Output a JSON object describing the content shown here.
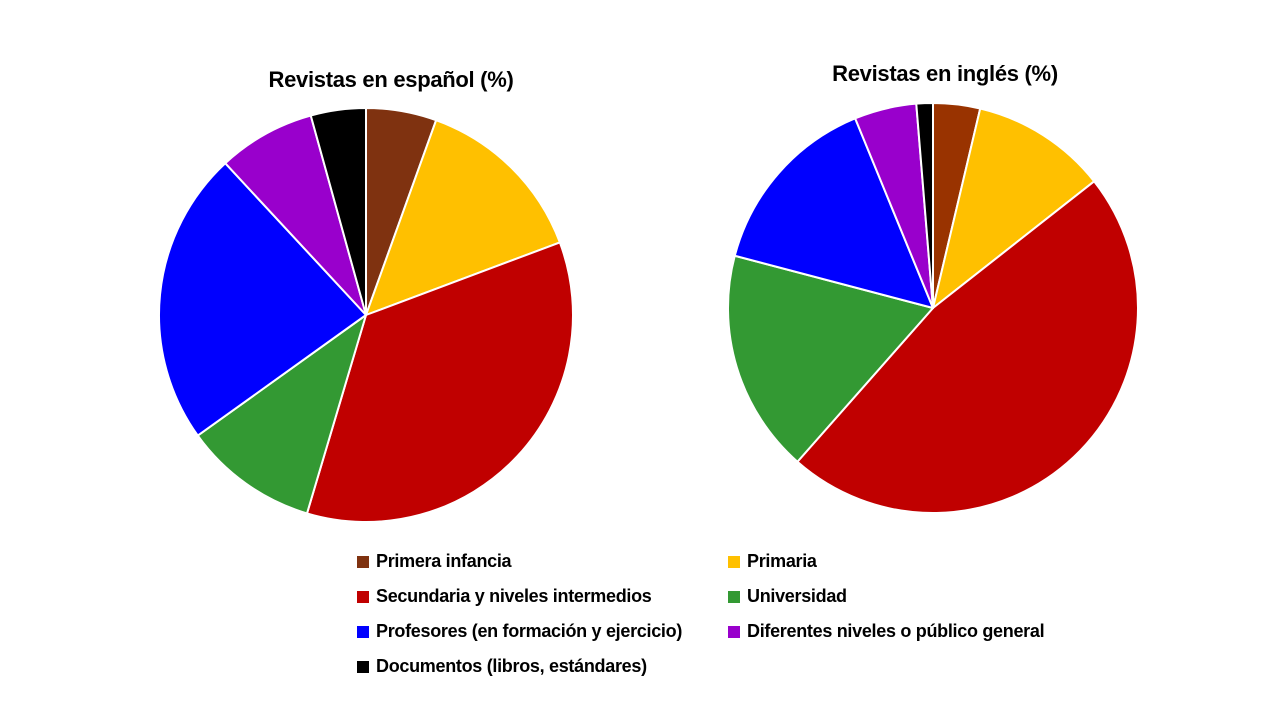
{
  "chart_data": [
    {
      "type": "pie",
      "title": "Revistas en español (%)",
      "categories": [
        "Primera infancia",
        "Primaria",
        "Secundaria y niveles intermedios",
        "Universidad",
        "Profesores (en formación y ejercicio)",
        "Diferentes niveles o público general",
        "Documentos (libros, estándares)"
      ],
      "values": [
        5.5,
        13.8,
        35.3,
        10.5,
        23.0,
        7.6,
        4.3
      ],
      "start_angle": 0,
      "direction": "clockwise"
    },
    {
      "type": "pie",
      "title": "Revistas en inglés (%)",
      "categories": [
        "Primera infancia",
        "Primaria",
        "Secundaria y niveles intermedios",
        "Universidad",
        "Profesores (en formación y ejercicio)",
        "Diferentes niveles o público general",
        "Documentos (libros, estándares)"
      ],
      "values": [
        3.7,
        10.7,
        47.1,
        17.6,
        14.7,
        4.9,
        1.3
      ],
      "start_angle": 0,
      "direction": "clockwise"
    }
  ],
  "charts": {
    "left": {
      "title": "Revistas en español (%)"
    },
    "right": {
      "title": "Revistas en inglés (%)"
    }
  },
  "legend": {
    "position": "bottom",
    "items": [
      {
        "label": "Primera infancia",
        "color": "#7F3210"
      },
      {
        "label": "Primaria",
        "color": "#FFC000"
      },
      {
        "label": "Secundaria y niveles intermedios",
        "color": "#C00000"
      },
      {
        "label": "Universidad",
        "color": "#339933"
      },
      {
        "label": "Profesores (en formación y ejercicio)",
        "color": "#0000FF"
      },
      {
        "label": "Diferentes niveles o público general",
        "color": "#9900CC"
      },
      {
        "label": "Documentos (libros, estándares)",
        "color": "#000000"
      }
    ]
  },
  "colors": {
    "slice_border": "#FFFFFF",
    "right_primera_infancia": "#993300"
  }
}
